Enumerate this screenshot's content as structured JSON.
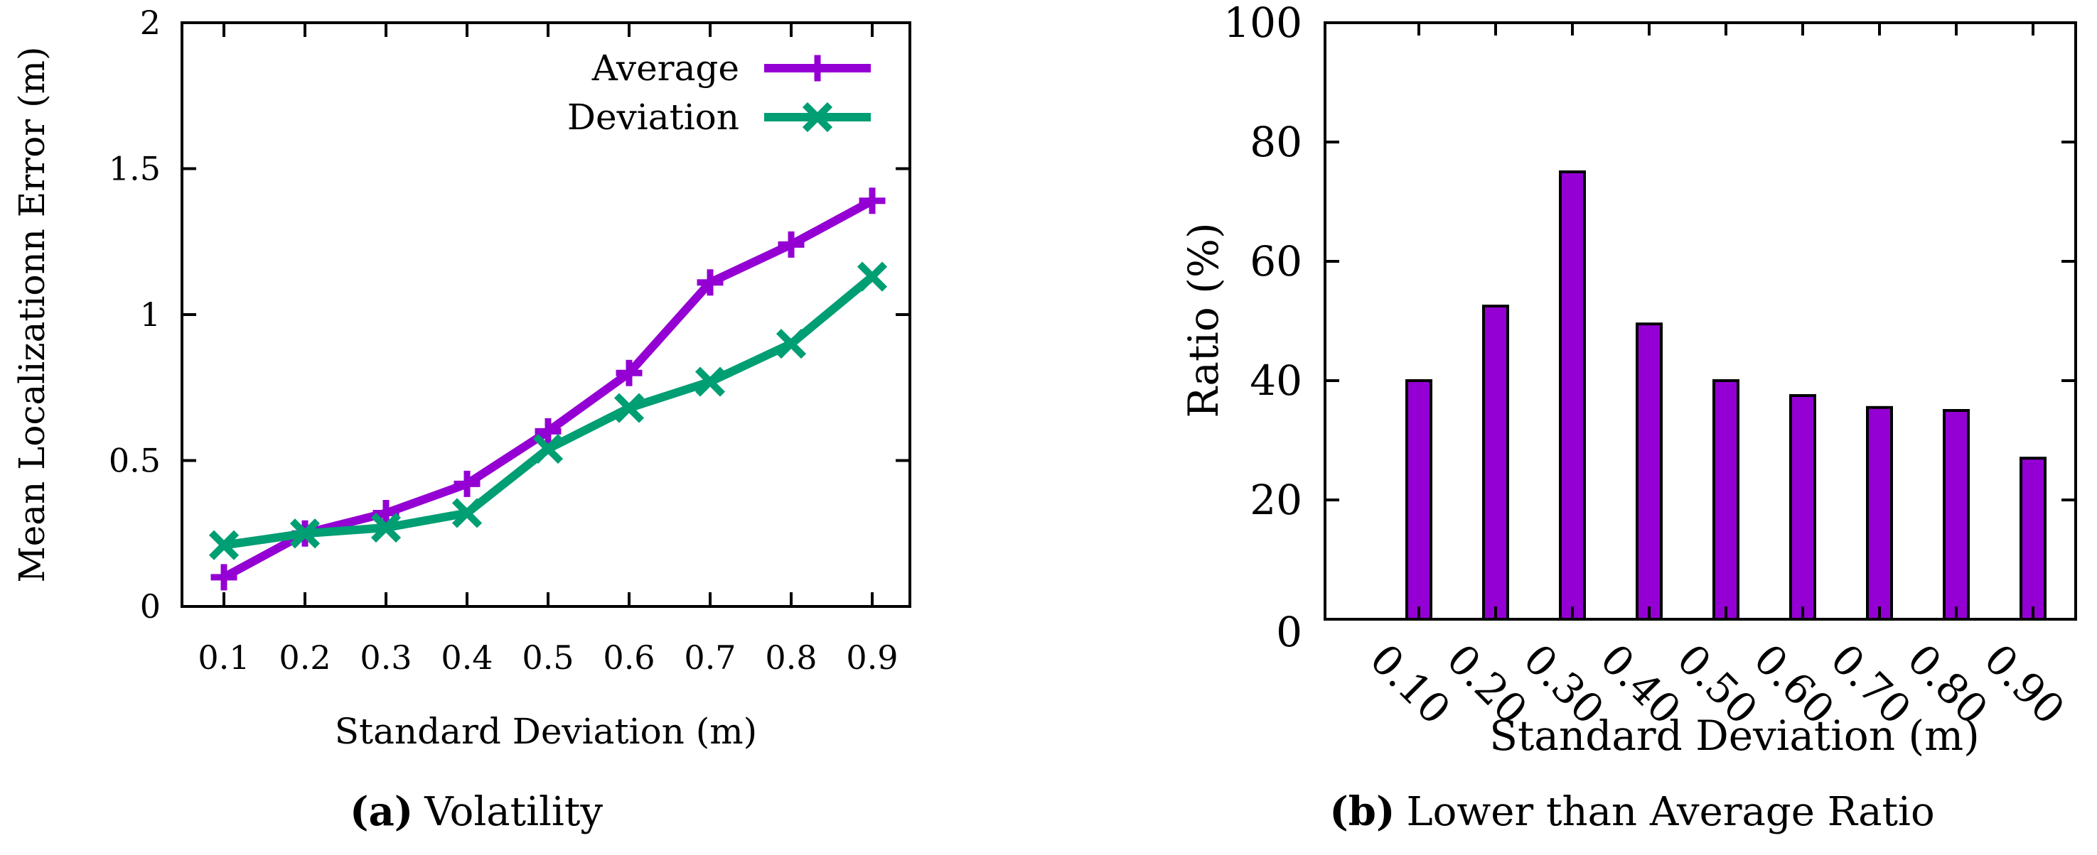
{
  "colors": {
    "average": "#9400d3",
    "deviation": "#009e73",
    "bar_fill": "#9400d3",
    "axis": "#000000"
  },
  "chart_data": [
    {
      "type": "line",
      "caption_label": "(a)",
      "caption_text": "Volatility",
      "title": "",
      "xlabel": "Standard Deviation (m)",
      "ylabel": "Mean Localizationn Error (m)",
      "categories": [
        "0.1",
        "0.2",
        "0.3",
        "0.4",
        "0.5",
        "0.6",
        "0.7",
        "0.8",
        "0.9"
      ],
      "x": [
        0.1,
        0.2,
        0.3,
        0.4,
        0.5,
        0.6,
        0.7,
        0.8,
        0.9
      ],
      "ylim": [
        0,
        2
      ],
      "yticks": [
        0,
        0.5,
        1,
        1.5,
        2
      ],
      "ytick_labels": [
        "0",
        "0.5",
        "1",
        "1.5",
        "2"
      ],
      "legend_position": "top-right",
      "series": [
        {
          "name": "Average",
          "marker": "plus",
          "values": [
            0.1,
            0.25,
            0.32,
            0.42,
            0.6,
            0.8,
            1.11,
            1.24,
            1.39
          ]
        },
        {
          "name": "Deviation",
          "marker": "cross",
          "values": [
            0.21,
            0.25,
            0.27,
            0.32,
            0.54,
            0.68,
            0.77,
            0.9,
            1.13
          ]
        }
      ]
    },
    {
      "type": "bar",
      "caption_label": "(b)",
      "caption_text": "Lower than Average Ratio",
      "title": "",
      "xlabel": "Standard Deviation (m)",
      "ylabel": "Ratio (%)",
      "categories": [
        "0.10",
        "0.20",
        "0.30",
        "0.40",
        "0.50",
        "0.60",
        "0.70",
        "0.80",
        "0.90"
      ],
      "values": [
        40,
        52.5,
        75,
        49.5,
        40,
        37.5,
        35.5,
        35,
        27
      ],
      "ylim": [
        0,
        100
      ],
      "yticks": [
        0,
        20,
        40,
        60,
        80,
        100
      ],
      "ytick_labels": [
        "0",
        "20",
        "40",
        "60",
        "80",
        "100"
      ]
    }
  ]
}
